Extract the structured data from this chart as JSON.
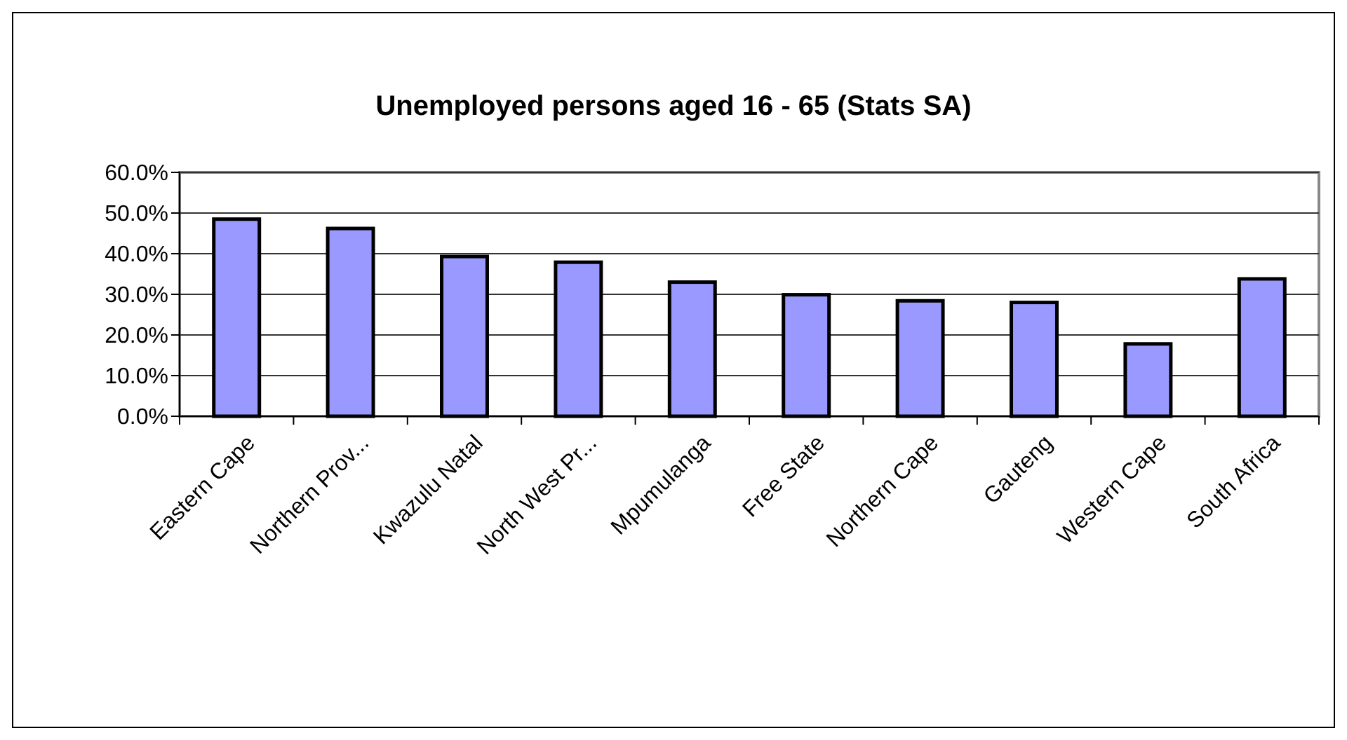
{
  "chart_data": {
    "type": "bar",
    "title": "Unemployed persons aged 16 - 65 (Stats SA)",
    "categories": [
      "Eastern Cape",
      "Northern Prov...",
      "Kwazulu Natal",
      "North West Pr...",
      "Mpumulanga",
      "Free State",
      "Northern Cape",
      "Gauteng",
      "Western Cape",
      "South Africa"
    ],
    "values": [
      48.5,
      46.2,
      39.3,
      37.9,
      33.0,
      29.9,
      28.4,
      28.0,
      17.8,
      33.8
    ],
    "color": "#9999ff",
    "ylim": [
      0,
      60
    ],
    "yticks": [
      {
        "value": 0,
        "label": "0.0%"
      },
      {
        "value": 10,
        "label": "10.0%"
      },
      {
        "value": 20,
        "label": "20.0%"
      },
      {
        "value": 30,
        "label": "30.0%"
      },
      {
        "value": 40,
        "label": "40.0%"
      },
      {
        "value": 50,
        "label": "50.0%"
      },
      {
        "value": 60,
        "label": "60.0%"
      }
    ],
    "grid": "y"
  }
}
